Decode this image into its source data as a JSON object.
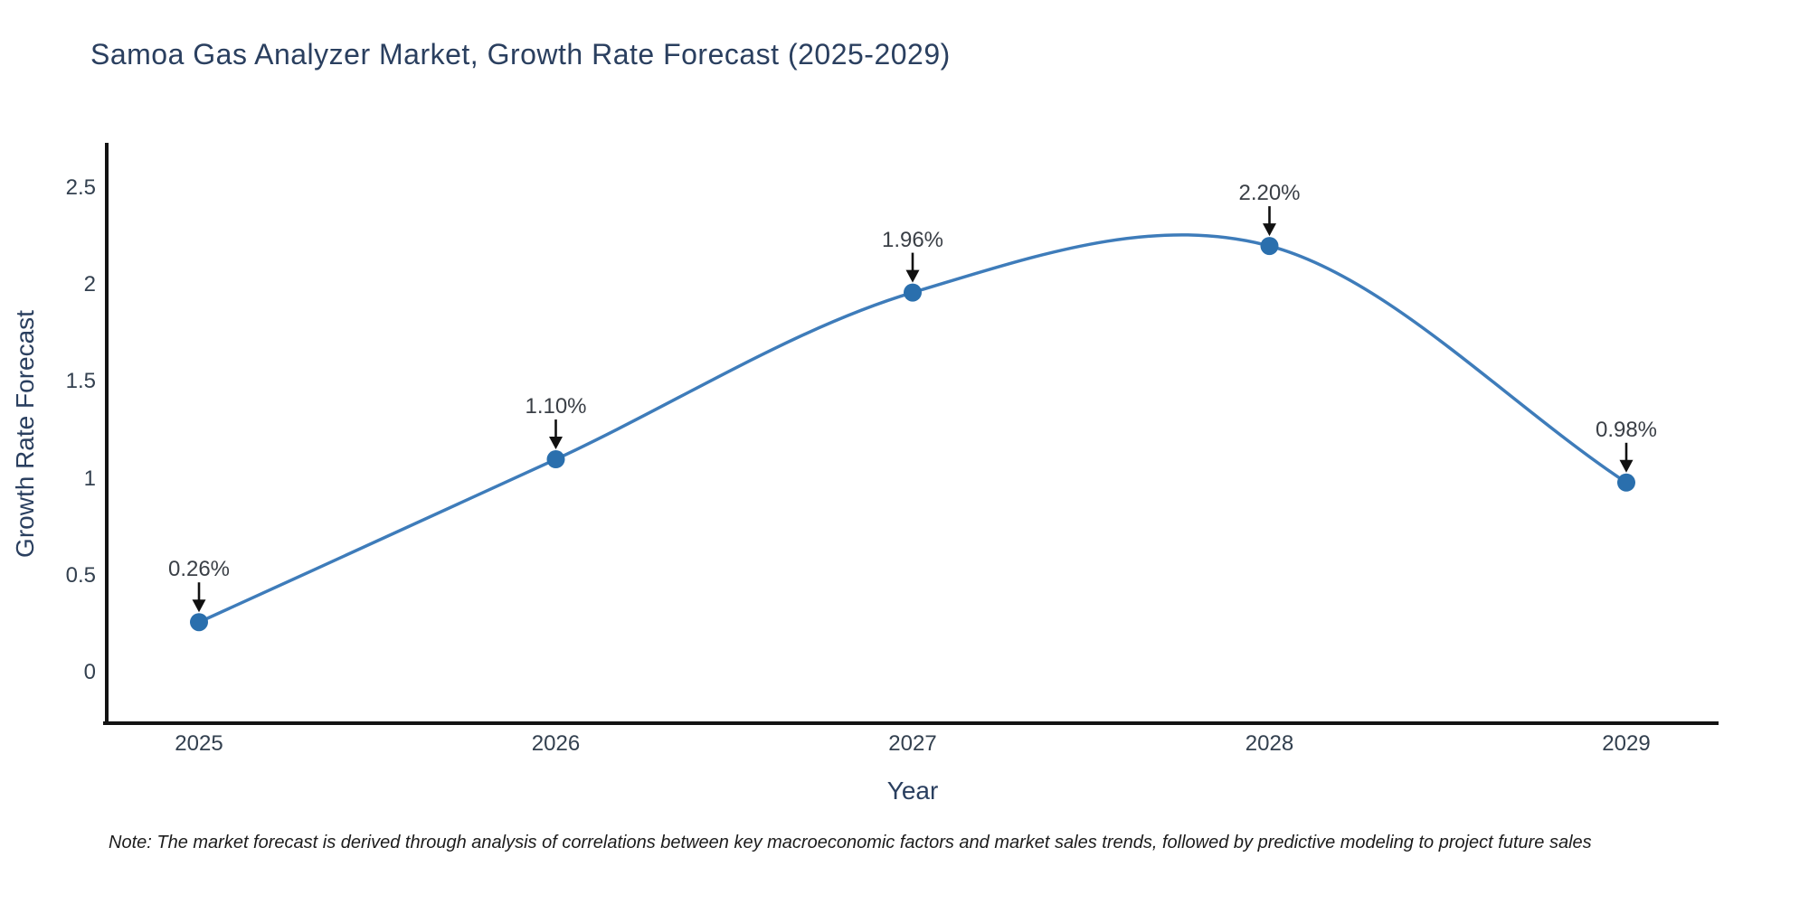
{
  "chart_data": {
    "type": "line",
    "line_shape": "spline",
    "title": "Samoa Gas Analyzer Market, Growth Rate Forecast (2025-2029)",
    "xlabel": "Year",
    "ylabel": "Growth Rate Forecast",
    "x": [
      2025,
      2026,
      2027,
      2028,
      2029
    ],
    "y": [
      0.26,
      1.1,
      1.96,
      2.2,
      0.98
    ],
    "point_labels": [
      "0.26%",
      "1.10%",
      "1.96%",
      "2.20%",
      "0.98%"
    ],
    "y_ticks": [
      0,
      0.5,
      1,
      1.5,
      2,
      2.5
    ],
    "ylim": [
      -0.27,
      2.73
    ],
    "grid": false,
    "legend": "none",
    "markers": true,
    "annotation_arrows": true,
    "colors": {
      "line": "#3e7cba",
      "marker": "#2a6fad",
      "axis": "#131313",
      "arrow": "#111111",
      "text": "#2a3f5f",
      "tick_text": "#33404f"
    }
  },
  "note": {
    "text": "Note: The market forecast is derived through analysis of correlations between key macroeconomic factors and market sales trends, followed by predictive modeling to project future sales"
  }
}
